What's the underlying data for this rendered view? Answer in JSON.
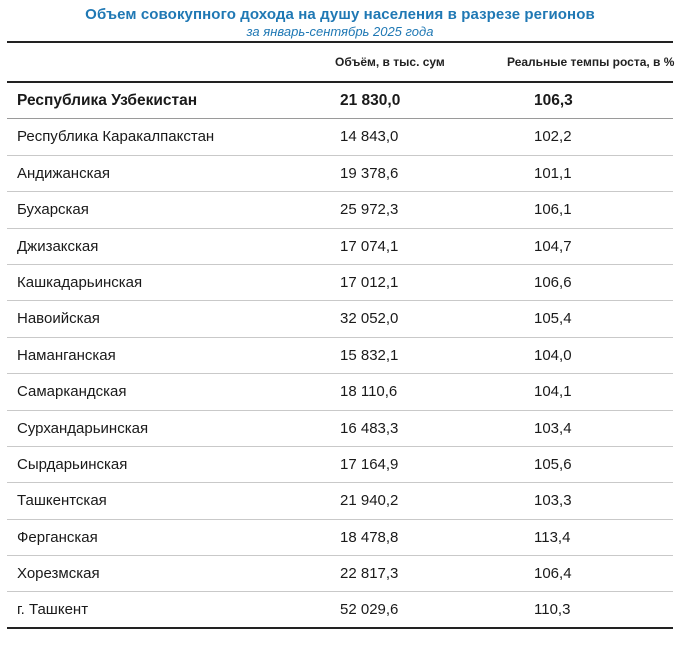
{
  "title": "Объем совокупного дохода на душу населения в разрезе регионов",
  "subtitle": "за январь-сентябрь 2025 года",
  "table": {
    "columns": [
      "",
      "Объём, в тыс. сум",
      "Реальные темпы роста, в %"
    ],
    "rows": [
      {
        "region": "Республика Узбекистан",
        "volume": "21 830,0",
        "growth": "106,3"
      },
      {
        "region": "Республика Каракалпакстан",
        "volume": "14 843,0",
        "growth": "102,2"
      },
      {
        "region": "Андижанская",
        "volume": "19 378,6",
        "growth": "101,1"
      },
      {
        "region": "Бухарская",
        "volume": "25 972,3",
        "growth": "106,1"
      },
      {
        "region": "Джизакская",
        "volume": "17 074,1",
        "growth": "104,7"
      },
      {
        "region": "Кашкадарьинская",
        "volume": "17 012,1",
        "growth": "106,6"
      },
      {
        "region": "Навоийская",
        "volume": "32 052,0",
        "growth": "105,4"
      },
      {
        "region": "Наманганская",
        "volume": "15 832,1",
        "growth": "104,0"
      },
      {
        "region": "Самаркандская",
        "volume": "18 110,6",
        "growth": "104,1"
      },
      {
        "region": "Сурхандарьинская",
        "volume": "16 483,3",
        "growth": "103,4"
      },
      {
        "region": "Сырдарьинская",
        "volume": "17 164,9",
        "growth": "105,6"
      },
      {
        "region": "Ташкентская",
        "volume": "21 940,2",
        "growth": "103,3"
      },
      {
        "region": "Ферганская",
        "volume": "18 478,8",
        "growth": "113,4"
      },
      {
        "region": "Хорезмская",
        "volume": "22 817,3",
        "growth": "106,4"
      },
      {
        "region": "г. Ташкент",
        "volume": "52 029,6",
        "growth": "110,3"
      }
    ]
  },
  "colors": {
    "title": "#1f78b4",
    "rule": "#222222",
    "divider": "#c9c9c9"
  }
}
